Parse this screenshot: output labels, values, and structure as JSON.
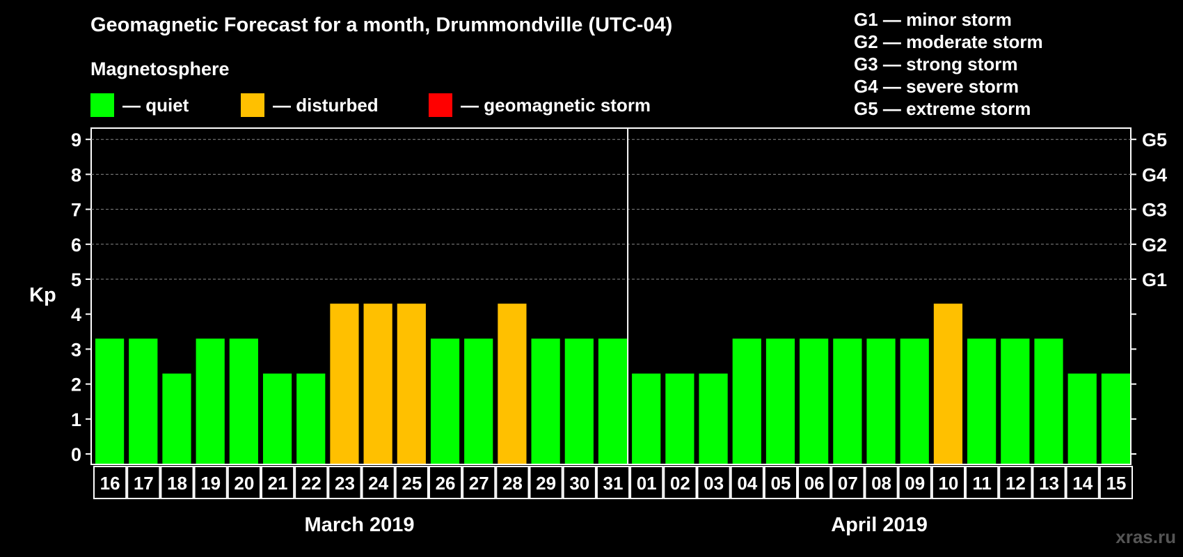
{
  "title": "Geomagnetic Forecast for a month, Drummondville (UTC-04)",
  "magnetosphere_label": "Magnetosphere",
  "legend": [
    {
      "color": "#00ff00",
      "label": "— quiet"
    },
    {
      "color": "#ffc000",
      "label": "— disturbed"
    },
    {
      "color": "#ff0000",
      "label": "— geomagnetic storm"
    }
  ],
  "storm_scale": [
    "G1 — minor storm",
    "G2 — moderate storm",
    "G3 — strong storm",
    "G4 — severe storm",
    "G5 — extreme storm"
  ],
  "watermark": "xras.ru",
  "chart_data": {
    "type": "bar",
    "ylabel": "Kp",
    "ylim": [
      0,
      9
    ],
    "y_ticks": [
      0,
      1,
      2,
      3,
      4,
      5,
      6,
      7,
      8,
      9
    ],
    "right_axis_labels": [
      {
        "kp": 5,
        "label": "G1"
      },
      {
        "kp": 6,
        "label": "G2"
      },
      {
        "kp": 7,
        "label": "G3"
      },
      {
        "kp": 8,
        "label": "G4"
      },
      {
        "kp": 9,
        "label": "G5"
      }
    ],
    "categories": [
      "16",
      "17",
      "18",
      "19",
      "20",
      "21",
      "22",
      "23",
      "24",
      "25",
      "26",
      "27",
      "28",
      "29",
      "30",
      "31",
      "01",
      "02",
      "03",
      "04",
      "05",
      "06",
      "07",
      "08",
      "09",
      "10",
      "11",
      "12",
      "13",
      "14",
      "15"
    ],
    "values": [
      3,
      3,
      2,
      3,
      3,
      2,
      2,
      4,
      4,
      4,
      3,
      3,
      4,
      3,
      3,
      3,
      2,
      2,
      2,
      3,
      3,
      3,
      3,
      3,
      3,
      4,
      3,
      3,
      3,
      2,
      2
    ],
    "status": [
      "quiet",
      "quiet",
      "quiet",
      "quiet",
      "quiet",
      "quiet",
      "quiet",
      "disturbed",
      "disturbed",
      "disturbed",
      "quiet",
      "quiet",
      "disturbed",
      "quiet",
      "quiet",
      "quiet",
      "quiet",
      "quiet",
      "quiet",
      "quiet",
      "quiet",
      "quiet",
      "quiet",
      "quiet",
      "quiet",
      "disturbed",
      "quiet",
      "quiet",
      "quiet",
      "quiet",
      "quiet"
    ],
    "status_colors": {
      "quiet": "#00ff00",
      "disturbed": "#ffc000",
      "storm": "#ff0000"
    },
    "months": [
      {
        "label": "March 2019",
        "start_index": 0,
        "count": 16
      },
      {
        "label": "April 2019",
        "start_index": 16,
        "count": 15
      }
    ],
    "grid": "dashed horizontal at Kp 5-9"
  }
}
